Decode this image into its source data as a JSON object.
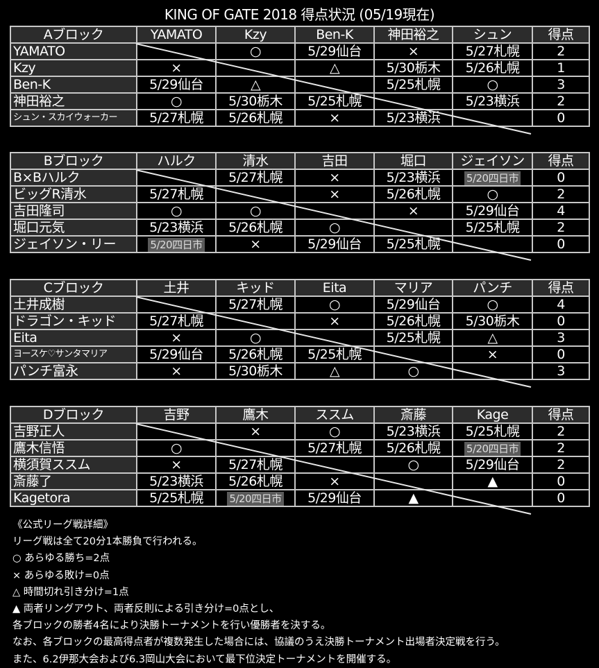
{
  "title": "KING OF GATE 2018 得点状況 (05/19現在)",
  "colors": {
    "background": "#000000",
    "header": "#2c2c2c",
    "grid": "#c8c8c8",
    "highlight": "#5a5a5a"
  },
  "blocks": [
    {
      "name": "Aブロック",
      "headers": [
        "YAMATO",
        "Kzy",
        "Ben-K",
        "神田裕之",
        "シュン",
        "得点"
      ],
      "rows": [
        {
          "name": "YAMATO",
          "cells": [
            "",
            "○",
            "5/29仙台",
            "×",
            "5/27札幌"
          ],
          "points": "2"
        },
        {
          "name": "Kzy",
          "cells": [
            "×",
            "",
            "△",
            "5/30栃木",
            "5/26札幌"
          ],
          "points": "1"
        },
        {
          "name": "Ben-K",
          "cells": [
            "5/29仙台",
            "△",
            "",
            "5/25札幌",
            "○"
          ],
          "points": "3"
        },
        {
          "name": "神田裕之",
          "cells": [
            "○",
            "5/30栃木",
            "5/25札幌",
            "",
            "5/23横浜"
          ],
          "points": "2"
        },
        {
          "name": "シュン・スカイウォーカー",
          "cells": [
            "5/27札幌",
            "5/26札幌",
            "×",
            "5/23横浜",
            ""
          ],
          "points": "0"
        }
      ]
    },
    {
      "name": "Bブロック",
      "headers": [
        "ハルク",
        "清水",
        "吉田",
        "堀口",
        "ジェイソン",
        "得点"
      ],
      "rows": [
        {
          "name": "B×Bハルク",
          "cells": [
            "",
            "5/27札幌",
            "×",
            "5/23横浜",
            "5/20四日市"
          ],
          "points": "0"
        },
        {
          "name": "ビッグR清水",
          "cells": [
            "5/27札幌",
            "",
            "×",
            "5/26札幌",
            "○"
          ],
          "points": "2"
        },
        {
          "name": "吉田隆司",
          "cells": [
            "○",
            "○",
            "",
            "×",
            "5/29仙台"
          ],
          "points": "4"
        },
        {
          "name": "堀口元気",
          "cells": [
            "5/23横浜",
            "5/26札幌",
            "○",
            "",
            "5/25札幌"
          ],
          "points": "2"
        },
        {
          "name": "ジェイソン・リー",
          "cells": [
            "5/20四日市",
            "×",
            "5/29仙台",
            "5/25札幌",
            ""
          ],
          "points": "0"
        }
      ]
    },
    {
      "name": "Cブロック",
      "headers": [
        "土井",
        "キッド",
        "Eita",
        "マリア",
        "パンチ",
        "得点"
      ],
      "rows": [
        {
          "name": "土井成樹",
          "cells": [
            "",
            "5/27札幌",
            "○",
            "5/29仙台",
            "○"
          ],
          "points": "4"
        },
        {
          "name": "ドラゴン・キッド",
          "cells": [
            "5/27札幌",
            "",
            "×",
            "5/26札幌",
            "5/30栃木"
          ],
          "points": "0"
        },
        {
          "name": "Eita",
          "cells": [
            "×",
            "○",
            "",
            "5/25札幌",
            "△"
          ],
          "points": "3"
        },
        {
          "name": "ヨースケ♡サンタマリア",
          "cells": [
            "5/29仙台",
            "5/26札幌",
            "5/25札幌",
            "",
            "×"
          ],
          "points": "0"
        },
        {
          "name": "パンチ富永",
          "cells": [
            "×",
            "5/30栃木",
            "△",
            "○",
            ""
          ],
          "points": "3"
        }
      ]
    },
    {
      "name": "Dブロック",
      "headers": [
        "吉野",
        "鷹木",
        "ススム",
        "斎藤",
        "Kage",
        "得点"
      ],
      "rows": [
        {
          "name": "吉野正人",
          "cells": [
            "",
            "×",
            "○",
            "5/23横浜",
            "5/25札幌"
          ],
          "points": "2"
        },
        {
          "name": "鷹木信悟",
          "cells": [
            "○",
            "",
            "5/27札幌",
            "5/26札幌",
            "5/20四日市"
          ],
          "points": "2"
        },
        {
          "name": "横須賀ススム",
          "cells": [
            "×",
            "5/27札幌",
            "",
            "○",
            "5/29仙台"
          ],
          "points": "2"
        },
        {
          "name": "斎藤了",
          "cells": [
            "5/23横浜",
            "5/26札幌",
            "×",
            "",
            "▲"
          ],
          "points": "0"
        },
        {
          "name": "Kagetora",
          "cells": [
            "5/25札幌",
            "5/20四日市",
            "5/29仙台",
            "▲",
            ""
          ],
          "points": "0"
        }
      ]
    }
  ],
  "highlighted_value": "5/20四日市",
  "notes": [
    "《公式リーグ戦詳細》",
    "リーグ戦は全て20分1本勝負で行われる。",
    "○ あらゆる勝ち=2点",
    "× あらゆる敗け=0点",
    "△ 時間切れ引き分け=1点",
    "▲ 両者リングアウト、両者反則による引き分け=0点とし、",
    "各ブロックの勝者4名により決勝トーナメントを行い優勝者を決する。",
    "なお、各ブロックの最高得点者が複数発生した場合には、協議のうえ決勝トーナメント出場者決定戦を行う。",
    "また、6.2伊那大会および6.3岡山大会において最下位決定トーナメントを開催する。"
  ]
}
